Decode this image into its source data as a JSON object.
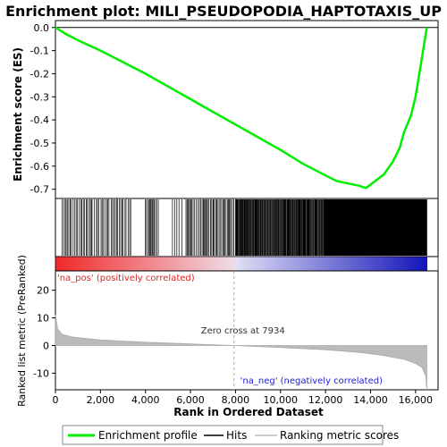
{
  "chart_data": {
    "type": "line",
    "title": "Enrichment plot: MILI_PSEUDOPODIA_HAPTOTAXIS_UP",
    "top_panel": {
      "ylabel": "Enrichment score (ES)",
      "ylim": [
        -0.74,
        0.03
      ],
      "yticks": [
        0.0,
        -0.1,
        -0.2,
        -0.3,
        -0.4,
        -0.5,
        -0.6,
        -0.7
      ],
      "ytick_labels": [
        "0.0",
        "-0.1",
        "-0.2",
        "-0.3",
        "-0.4",
        "-0.5",
        "-0.6",
        "-0.7"
      ],
      "series": [
        {
          "name": "Enrichment profile",
          "color": "#00ee00",
          "x": [
            0,
            500,
            1000,
            2000,
            3000,
            4000,
            5000,
            6000,
            7000,
            8000,
            9000,
            10000,
            11000,
            12000,
            12500,
            13000,
            13500,
            13800,
            14200,
            14600,
            15000,
            15300,
            15500,
            15800,
            16000,
            16200,
            16400,
            16500
          ],
          "y": [
            0.0,
            -0.03,
            -0.055,
            -0.1,
            -0.15,
            -0.2,
            -0.255,
            -0.31,
            -0.365,
            -0.42,
            -0.475,
            -0.53,
            -0.59,
            -0.64,
            -0.665,
            -0.675,
            -0.685,
            -0.695,
            -0.665,
            -0.635,
            -0.58,
            -0.52,
            -0.45,
            -0.38,
            -0.3,
            -0.18,
            -0.06,
            0.0
          ]
        }
      ]
    },
    "hits_panel": {
      "series_name": "Hits",
      "hit_positions_description": "dense gene-set hits concentrated between ranks 12,000 and 16,500",
      "hit_ranges": [
        [
          300,
          3400
        ],
        [
          4000,
          4600
        ],
        [
          5200,
          5700
        ],
        [
          5800,
          8000
        ],
        [
          8000,
          12000
        ],
        [
          12000,
          16500
        ]
      ],
      "hit_density": [
        0.015,
        0.02,
        0.01,
        0.02,
        0.04,
        0.16
      ]
    },
    "metric_panel": {
      "ylabel": "Ranked list metric (PreRanked)",
      "ylim": [
        -16,
        27
      ],
      "yticks": [
        20,
        10,
        0,
        -10
      ],
      "ytick_labels": [
        "20",
        "10",
        "0",
        "-10"
      ],
      "series_name": "Ranking metric scores",
      "x": [
        0,
        100,
        300,
        800,
        2000,
        4000,
        6000,
        7934,
        10000,
        12000,
        13500,
        14500,
        15500,
        16000,
        16300,
        16450,
        16500
      ],
      "y": [
        11,
        6,
        4,
        3,
        2,
        1.2,
        0.6,
        0,
        -0.7,
        -1.5,
        -2.5,
        -3.5,
        -5,
        -6.5,
        -8,
        -11,
        -16
      ],
      "zero_cross_label": "Zero cross at 7934",
      "zero_cross_x": 7934,
      "pos_label": "'na_pos' (positively correlated)",
      "neg_label": "'na_neg' (negatively correlated)",
      "pos_color": "#dd2222",
      "neg_color": "#2222cc"
    },
    "xlabel": "Rank in Ordered Dataset",
    "xlim": [
      0,
      17000
    ],
    "xticks": [
      0,
      2000,
      4000,
      6000,
      8000,
      10000,
      12000,
      14000,
      16000
    ],
    "xtick_labels": [
      "0",
      "2,000",
      "4,000",
      "6,000",
      "8,000",
      "10,000",
      "12,000",
      "14,000",
      "16,000"
    ],
    "n_genes": 16500,
    "legend": {
      "placement": "bottom",
      "items": [
        {
          "label": "Enrichment profile",
          "color": "#00ee00",
          "style": "line"
        },
        {
          "label": "Hits",
          "color": "#000000",
          "style": "line"
        },
        {
          "label": "Ranking metric scores",
          "color": "#bbbbbb",
          "style": "line"
        }
      ]
    }
  }
}
